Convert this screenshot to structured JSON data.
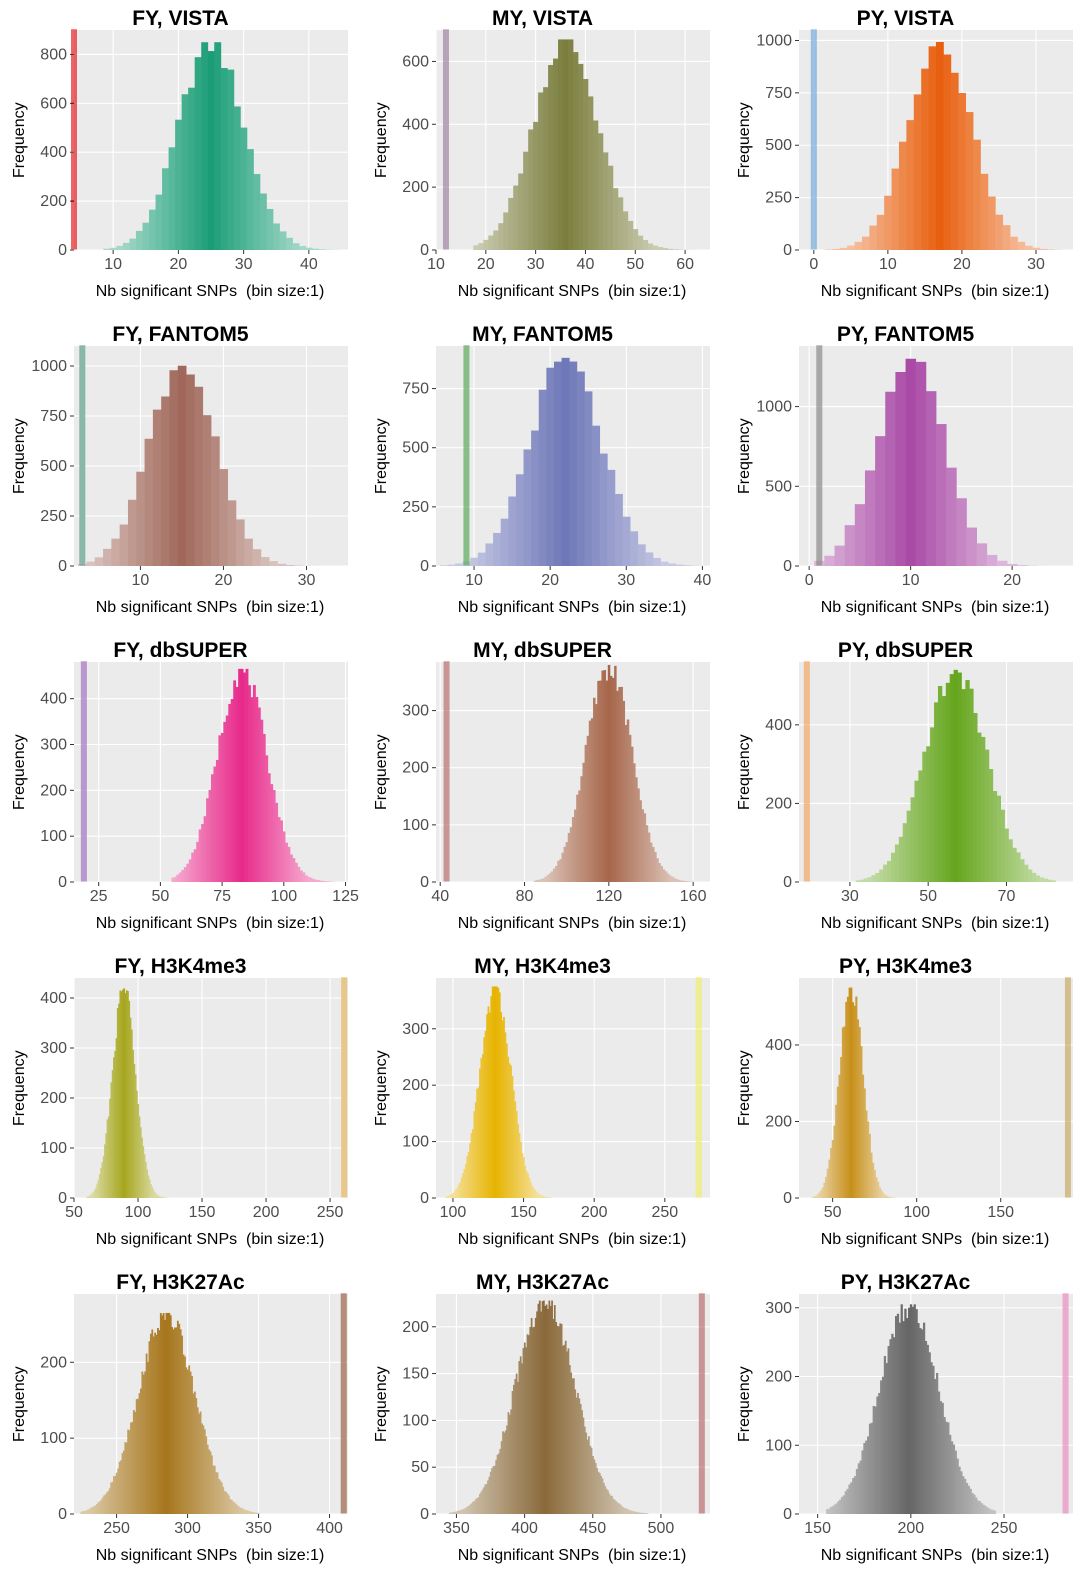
{
  "chart_data": [
    {
      "type": "bar",
      "title": "FY, VISTA",
      "xlabel": "Nb significant SNPs  (bin size:1)",
      "ylabel": "Frequency",
      "xlim": [
        4,
        46
      ],
      "ylim": [
        0,
        900
      ],
      "xticks": [
        10,
        20,
        30,
        40
      ],
      "yticks": [
        0,
        200,
        400,
        600,
        800
      ],
      "dist": {
        "mean": 25,
        "sd": 5,
        "peak": 850,
        "min": 9,
        "max": 44
      },
      "observed": 4,
      "color": "#1b9e77",
      "observed_color": "#e41a1c"
    },
    {
      "type": "bar",
      "title": "MY, VISTA",
      "xlabel": "Nb significant SNPs  (bin size:1)",
      "ylabel": "Frequency",
      "xlim": [
        10,
        65
      ],
      "ylim": [
        0,
        700
      ],
      "xticks": [
        10,
        20,
        30,
        40,
        50,
        60
      ],
      "yticks": [
        0,
        200,
        400,
        600
      ],
      "dist": {
        "mean": 36,
        "sd": 6.5,
        "peak": 670,
        "min": 18,
        "max": 62
      },
      "observed": 12,
      "color": "#7b7e3d",
      "observed_color": "#a07fa0"
    },
    {
      "type": "bar",
      "title": "PY, VISTA",
      "xlabel": "Nb significant SNPs  (bin size:1)",
      "ylabel": "Frequency",
      "xlim": [
        -2,
        35
      ],
      "ylim": [
        0,
        1050
      ],
      "xticks": [
        0,
        10,
        20,
        30
      ],
      "yticks": [
        0,
        250,
        500,
        750,
        1000
      ],
      "dist": {
        "mean": 17,
        "sd": 4.3,
        "peak": 1010,
        "min": 2,
        "max": 33
      },
      "observed": 0,
      "color": "#e8600f",
      "observed_color": "#6fa8dc"
    },
    {
      "type": "bar",
      "title": "FY, FANTOM5",
      "xlabel": "Nb significant SNPs  (bin size:1)",
      "ylabel": "Frequency",
      "xlim": [
        2,
        35
      ],
      "ylim": [
        0,
        1100
      ],
      "xticks": [
        10,
        20,
        30
      ],
      "yticks": [
        0,
        250,
        500,
        750,
        1000
      ],
      "dist": {
        "mean": 15,
        "sd": 4,
        "peak": 1030,
        "min": 3,
        "max": 33
      },
      "observed": 3,
      "color": "#a0675a",
      "observed_color": "#5aa08a"
    },
    {
      "type": "bar",
      "title": "MY, FANTOM5",
      "xlabel": "Nb significant SNPs  (bin size:1)",
      "ylabel": "Frequency",
      "xlim": [
        5,
        41
      ],
      "ylim": [
        0,
        930
      ],
      "xticks": [
        10,
        20,
        30,
        40
      ],
      "yticks": [
        0,
        250,
        500,
        750
      ],
      "dist": {
        "mean": 22,
        "sd": 4.7,
        "peak": 880,
        "min": 6,
        "max": 40
      },
      "observed": 9,
      "color": "#6e77b8",
      "observed_color": "#55a855"
    },
    {
      "type": "bar",
      "title": "PY, FANTOM5",
      "xlabel": "Nb significant SNPs  (bin size:1)",
      "ylabel": "Frequency",
      "xlim": [
        -1,
        26
      ],
      "ylim": [
        0,
        1380
      ],
      "xticks": [
        0,
        10,
        20
      ],
      "yticks": [
        0,
        500,
        1000
      ],
      "dist": {
        "mean": 10,
        "sd": 3.3,
        "peak": 1300,
        "min": 1,
        "max": 24
      },
      "observed": 1,
      "color": "#a94aa6",
      "observed_color": "#888888"
    },
    {
      "type": "bar",
      "title": "FY, dbSUPER",
      "xlabel": "Nb significant SNPs  (bin size:1)",
      "ylabel": "Frequency",
      "xlim": [
        15,
        126
      ],
      "ylim": [
        0,
        480
      ],
      "xticks": [
        25,
        50,
        75,
        100,
        125
      ],
      "yticks": [
        0,
        100,
        200,
        300,
        400
      ],
      "dist": {
        "mean": 83,
        "sd": 10,
        "peak": 465,
        "min": 55,
        "max": 120
      },
      "observed": 19,
      "color": "#e7298a",
      "observed_color": "#9f6fbf"
    },
    {
      "type": "bar",
      "title": "MY, dbSUPER",
      "xlabel": "Nb significant SNPs  (bin size:1)",
      "ylabel": "Frequency",
      "xlim": [
        38,
        168
      ],
      "ylim": [
        0,
        385
      ],
      "xticks": [
        40,
        80,
        120,
        160
      ],
      "yticks": [
        0,
        100,
        200,
        300
      ],
      "dist": {
        "mean": 120,
        "sd": 11,
        "peak": 380,
        "min": 85,
        "max": 160
      },
      "observed": 43,
      "color": "#a6664a",
      "observed_color": "#b86a6a"
    },
    {
      "type": "bar",
      "title": "PY, dbSUPER",
      "xlabel": "Nb significant SNPs  (bin size:1)",
      "ylabel": "Frequency",
      "xlim": [
        17,
        87
      ],
      "ylim": [
        0,
        560
      ],
      "xticks": [
        30,
        50,
        70
      ],
      "yticks": [
        0,
        200,
        400
      ],
      "dist": {
        "mean": 57,
        "sd": 8,
        "peak": 540,
        "min": 32,
        "max": 82
      },
      "observed": 19,
      "color": "#66a61e",
      "observed_color": "#f4a460"
    },
    {
      "type": "bar",
      "title": "FY, H3K4me3",
      "xlabel": "Nb significant SNPs  (bin size:1)",
      "ylabel": "Frequency",
      "xlim": [
        50,
        264
      ],
      "ylim": [
        0,
        440
      ],
      "xticks": [
        50,
        100,
        150,
        200,
        250
      ],
      "yticks": [
        0,
        100,
        200,
        300,
        400
      ],
      "dist": {
        "mean": 89,
        "sd": 9,
        "peak": 425,
        "min": 60,
        "max": 130
      },
      "observed": 261,
      "color": "#a6a61e",
      "observed_color": "#e6b85c"
    },
    {
      "type": "bar",
      "title": "MY, H3K4me3",
      "xlabel": "Nb significant SNPs  (bin size:1)",
      "ylabel": "Frequency",
      "xlim": [
        88,
        282
      ],
      "ylim": [
        0,
        390
      ],
      "xticks": [
        100,
        150,
        200,
        250
      ],
      "yticks": [
        0,
        100,
        200,
        300
      ],
      "dist": {
        "mean": 130,
        "sd": 11,
        "peak": 375,
        "min": 95,
        "max": 170
      },
      "observed": 274,
      "color": "#e6b300",
      "observed_color": "#eeee66"
    },
    {
      "type": "bar",
      "title": "PY, H3K4me3",
      "xlabel": "Nb significant SNPs  (bin size:1)",
      "ylabel": "Frequency",
      "xlim": [
        30,
        193
      ],
      "ylim": [
        0,
        575
      ],
      "xticks": [
        50,
        100,
        150
      ],
      "yticks": [
        0,
        200,
        400
      ],
      "dist": {
        "mean": 61,
        "sd": 7,
        "peak": 550,
        "min": 38,
        "max": 88
      },
      "observed": 190,
      "color": "#c7901a",
      "observed_color": "#c8a860"
    },
    {
      "type": "bar",
      "title": "FY, H3K27Ac",
      "xlabel": "Nb significant SNPs  (bin size:1)",
      "ylabel": "Frequency",
      "xlim": [
        220,
        413
      ],
      "ylim": [
        0,
        290
      ],
      "xticks": [
        250,
        300,
        350,
        400
      ],
      "yticks": [
        0,
        100,
        200
      ],
      "dist": {
        "mean": 285,
        "sd": 20,
        "peak": 265,
        "min": 225,
        "max": 350
      },
      "observed": 410,
      "color": "#a6761d",
      "observed_color": "#9a6040"
    },
    {
      "type": "bar",
      "title": "MY, H3K27Ac",
      "xlabel": "Nb significant SNPs  (bin size:1)",
      "ylabel": "Frequency",
      "xlim": [
        335,
        536
      ],
      "ylim": [
        0,
        235
      ],
      "xticks": [
        350,
        400,
        450,
        500
      ],
      "yticks": [
        0,
        50,
        100,
        150,
        200
      ],
      "dist": {
        "mean": 415,
        "sd": 22,
        "peak": 228,
        "min": 345,
        "max": 490
      },
      "observed": 530,
      "color": "#8a6a3a",
      "observed_color": "#b86a6a"
    },
    {
      "type": "bar",
      "title": "PY, H3K27Ac",
      "xlabel": "Nb significant SNPs  (bin size:1)",
      "ylabel": "Frequency",
      "xlim": [
        140,
        287
      ],
      "ylim": [
        0,
        320
      ],
      "xticks": [
        150,
        200,
        250
      ],
      "yticks": [
        0,
        100,
        200,
        300
      ],
      "dist": {
        "mean": 199,
        "sd": 16,
        "peak": 305,
        "min": 155,
        "max": 245
      },
      "observed": 283,
      "color": "#666666",
      "observed_color": "#e88ac0"
    }
  ]
}
